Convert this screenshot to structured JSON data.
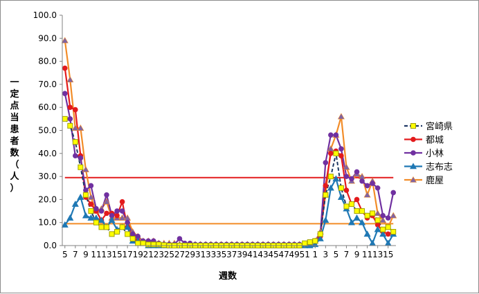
{
  "chart_data": {
    "type": "line",
    "title": "",
    "xlabel": "週数",
    "ylabel": "一定点当患者数（人）",
    "ylim": [
      0,
      100
    ],
    "yticks": [
      "0.0",
      "10.0",
      "20.0",
      "30.0",
      "40.0",
      "50.0",
      "60.0",
      "70.0",
      "80.0",
      "90.0",
      "100.0"
    ],
    "grid": false,
    "legend_position": "right",
    "x_tick_labels": [
      "5",
      "7",
      "9",
      "11",
      "13",
      "15",
      "17",
      "19",
      "21",
      "23",
      "25",
      "27",
      "29",
      "31",
      "33",
      "35",
      "37",
      "39",
      "41",
      "43",
      "45",
      "47",
      "49",
      "51",
      "1",
      "3",
      "5",
      "7",
      "9",
      "11",
      "13",
      "15"
    ],
    "x": [
      5,
      6,
      7,
      8,
      9,
      10,
      11,
      12,
      13,
      14,
      15,
      16,
      17,
      18,
      19,
      20,
      21,
      22,
      23,
      24,
      25,
      26,
      27,
      28,
      29,
      30,
      31,
      32,
      33,
      34,
      35,
      36,
      37,
      38,
      39,
      40,
      41,
      42,
      43,
      44,
      45,
      46,
      47,
      48,
      49,
      50,
      51,
      52,
      1,
      2,
      3,
      4,
      5,
      6,
      7,
      8,
      9,
      10,
      11,
      12,
      13,
      14,
      15,
      16
    ],
    "series": [
      {
        "name": "宮崎県",
        "color": "#1f3864",
        "marker": "square",
        "marker_fill": "#ffff00",
        "dash": true,
        "values": [
          55,
          52,
          45,
          34,
          22,
          15,
          10,
          8,
          8,
          5,
          6,
          8,
          5,
          3,
          1,
          1,
          0.5,
          0.5,
          0.5,
          0.2,
          0,
          0,
          0,
          0,
          0,
          0,
          0,
          0,
          0,
          0,
          0,
          0,
          0,
          0,
          0,
          0,
          0,
          0,
          0,
          0,
          0,
          0,
          0,
          0,
          0,
          0,
          1,
          1.5,
          2,
          5,
          22,
          30,
          40,
          25,
          17,
          18,
          15,
          15,
          13,
          14,
          11,
          7,
          8,
          6
        ]
      },
      {
        "name": "都城",
        "color": "#e31a1c",
        "marker": "circle",
        "marker_fill": "#e31a1c",
        "dash": false,
        "values": [
          77,
          60,
          59,
          39,
          21,
          18,
          15,
          11,
          14,
          14,
          13,
          19,
          8,
          4,
          2,
          1,
          1,
          1,
          0.5,
          0,
          0,
          0,
          0,
          0,
          0,
          0,
          0,
          0,
          0,
          0,
          0,
          0,
          0,
          0,
          0,
          0,
          0,
          0,
          0,
          0,
          0,
          0,
          0,
          0,
          0,
          0,
          0.5,
          1,
          2,
          4,
          26,
          40,
          41,
          39,
          24,
          18,
          20,
          15,
          12,
          13,
          9,
          6,
          5,
          6
        ]
      },
      {
        "name": "小林",
        "color": "#7030a0",
        "marker": "circle",
        "marker_fill": "#7030a0",
        "dash": false,
        "values": [
          66,
          55,
          39,
          38,
          24,
          26,
          16,
          15,
          22,
          13,
          15,
          15,
          10,
          5,
          4,
          2,
          2,
          2,
          1,
          0.5,
          0.5,
          0.5,
          3,
          1,
          1,
          0.5,
          0.5,
          0.5,
          0.5,
          0.5,
          0.5,
          0.5,
          0.5,
          0.5,
          0.5,
          0.5,
          0.5,
          0.5,
          0.5,
          0.5,
          0.5,
          0.5,
          0.5,
          0.5,
          0.5,
          0.5,
          0.5,
          1,
          2,
          5,
          36,
          48,
          48,
          42,
          30,
          29,
          32,
          28,
          26,
          27,
          25,
          13,
          12,
          23
        ]
      },
      {
        "name": "志布志",
        "color": "#1f78b4",
        "marker": "triangle",
        "marker_fill": "#1f78b4",
        "dash": false,
        "values": [
          9,
          12,
          18,
          21,
          13,
          12,
          12,
          11,
          8,
          11,
          7,
          8,
          8,
          2,
          2,
          1,
          0,
          0,
          0,
          0,
          0,
          0,
          0,
          0,
          0,
          0,
          0,
          0,
          0,
          0,
          0,
          0,
          0,
          0,
          0,
          0,
          0,
          0,
          0,
          0,
          0,
          0,
          0,
          0,
          0,
          0,
          0,
          0,
          0.5,
          3,
          11,
          25,
          29,
          21,
          16,
          10,
          12,
          10,
          5,
          1,
          7,
          5,
          1,
          5
        ]
      },
      {
        "name": "鹿屋",
        "color": "#f28c28",
        "marker": "triangle",
        "marker_fill": "#8064a2",
        "dash": false,
        "values": [
          89,
          72,
          51,
          51,
          33,
          21,
          15,
          16,
          19,
          12,
          12,
          12,
          12,
          6,
          4,
          2,
          2,
          2,
          1,
          1,
          1,
          1,
          0.5,
          0.5,
          0.5,
          0.5,
          0.5,
          0.5,
          0.5,
          0.5,
          0.5,
          0.5,
          0.5,
          0.5,
          0.5,
          0.5,
          0.5,
          0.5,
          0.5,
          0.5,
          0.5,
          0.5,
          0.5,
          0.5,
          0.5,
          0.5,
          0.5,
          1,
          2,
          6,
          22,
          42,
          48,
          56,
          34,
          28,
          31,
          30,
          22,
          28,
          14,
          11,
          8,
          13
        ]
      }
    ],
    "reference_lines": [
      {
        "value": 29.5,
        "color": "#e31a1c"
      },
      {
        "value": 9.5,
        "color": "#f28c28"
      }
    ]
  }
}
